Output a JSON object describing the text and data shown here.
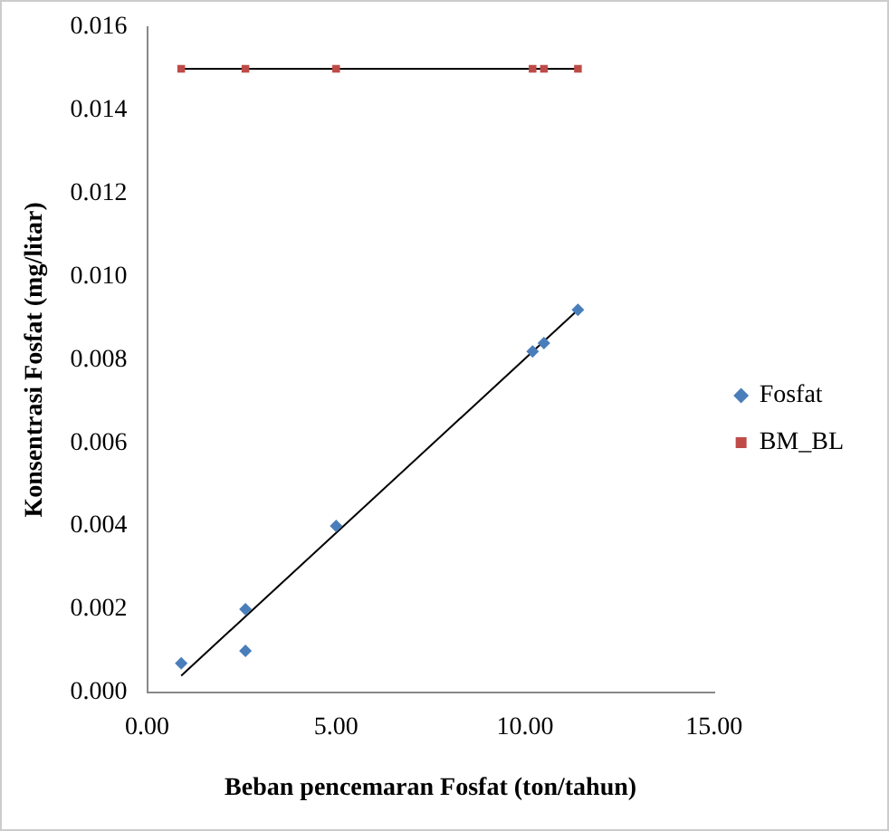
{
  "chart_data": {
    "type": "scatter",
    "xlabel": "Beban pencemaran Fosfat (ton/tahun)",
    "ylabel": "Konsentrasi Fosfat (mg/litar)",
    "xlim": [
      0,
      15
    ],
    "xticks": [
      {
        "value": 0,
        "label": "0.00"
      },
      {
        "value": 5,
        "label": "5.00"
      },
      {
        "value": 10,
        "label": "10.00"
      },
      {
        "value": 15,
        "label": "15.00"
      }
    ],
    "ylim": [
      0,
      0.016
    ],
    "yticks": [
      {
        "value": 0,
        "label": "0.000"
      },
      {
        "value": 0.002,
        "label": "0.002"
      },
      {
        "value": 0.004,
        "label": "0.004"
      },
      {
        "value": 0.006,
        "label": "0.006"
      },
      {
        "value": 0.008,
        "label": "0.008"
      },
      {
        "value": 0.01,
        "label": "0.010"
      },
      {
        "value": 0.012,
        "label": "0.012"
      },
      {
        "value": 0.014,
        "label": "0.014"
      },
      {
        "value": 0.016,
        "label": "0.016"
      }
    ],
    "grid": false,
    "legend": "right",
    "series": [
      {
        "name": "Fosfat",
        "type": "scatter",
        "marker": "diamond",
        "color": "#4a7ebb",
        "x": [
          0.9,
          2.6,
          2.6,
          5.0,
          10.2,
          10.5,
          11.4
        ],
        "values": [
          0.0007,
          0.002,
          0.001,
          0.004,
          0.0082,
          0.0084,
          0.0092
        ]
      },
      {
        "name": "BM_BL",
        "type": "scatter",
        "marker": "square",
        "color": "#be4b48",
        "x": [
          0.9,
          2.6,
          5.0,
          10.2,
          10.5,
          11.4
        ],
        "values": [
          0.015,
          0.015,
          0.015,
          0.015,
          0.015,
          0.015
        ]
      },
      {
        "type": "line",
        "marker": "none",
        "color": "#000000",
        "x": [
          0.9,
          11.4
        ],
        "values": [
          0.0004,
          0.0092
        ]
      },
      {
        "type": "line",
        "marker": "none",
        "color": "#000000",
        "x": [
          0.9,
          11.4
        ],
        "values": [
          0.015,
          0.015
        ]
      }
    ]
  }
}
